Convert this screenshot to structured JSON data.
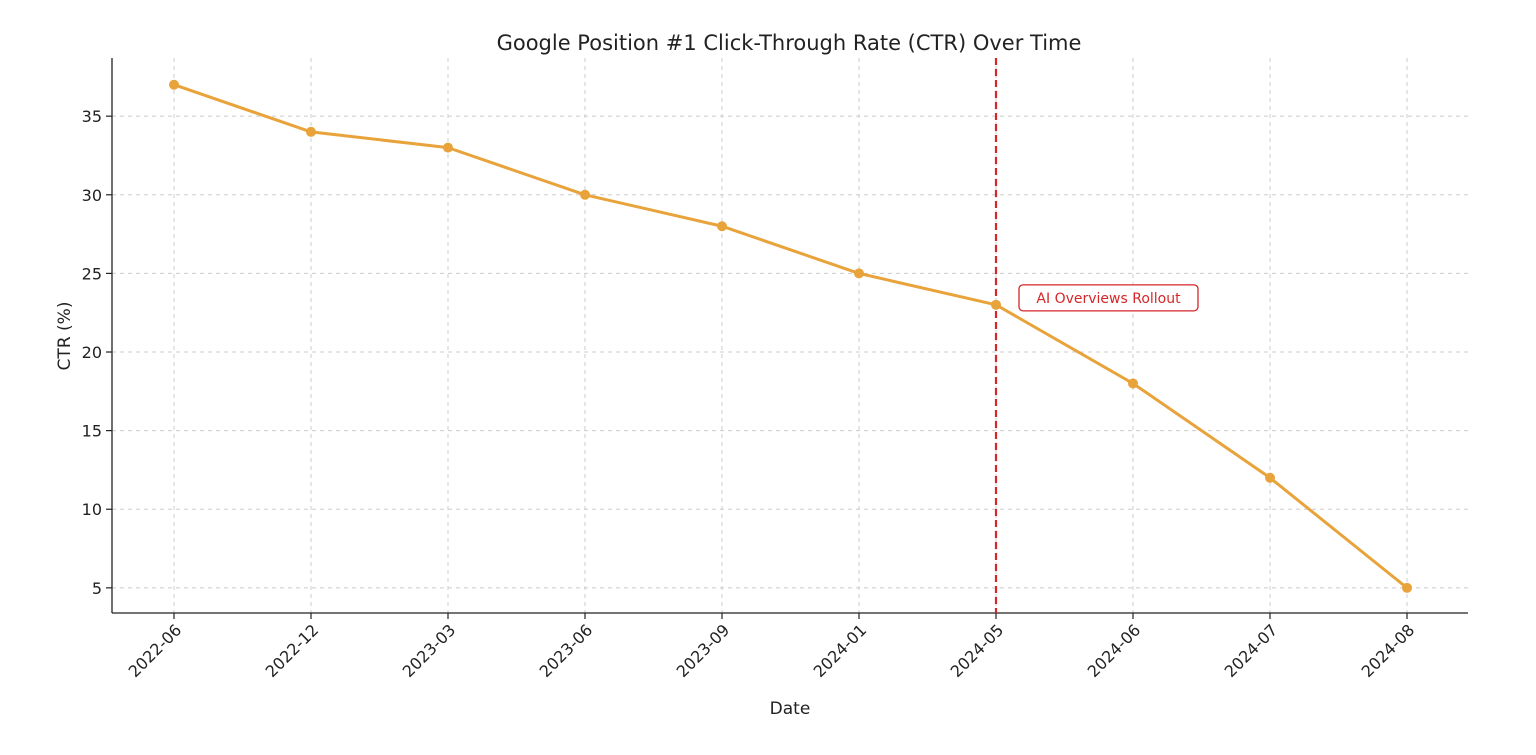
{
  "chart_data": {
    "type": "line",
    "title": "Google Position #1 Click-Through Rate (CTR) Over Time",
    "xlabel": "Date",
    "ylabel": "CTR (%)",
    "categories": [
      "2022-06",
      "2022-12",
      "2023-03",
      "2023-06",
      "2023-09",
      "2024-01",
      "2024-05",
      "2024-06",
      "2024-07",
      "2024-08"
    ],
    "series": [
      {
        "values": [
          37,
          34,
          33,
          30,
          28,
          25,
          23,
          18,
          12,
          5
        ]
      }
    ],
    "ylim": [
      3.4,
      38.7
    ],
    "yticks": [
      5,
      10,
      15,
      20,
      25,
      30,
      35
    ],
    "grid": true,
    "line_color": "#E8A33A",
    "annotation": {
      "text": "AI Overviews Rollout",
      "at_category": "2024-05",
      "color": "#D62728",
      "line_style": "dashed"
    }
  }
}
